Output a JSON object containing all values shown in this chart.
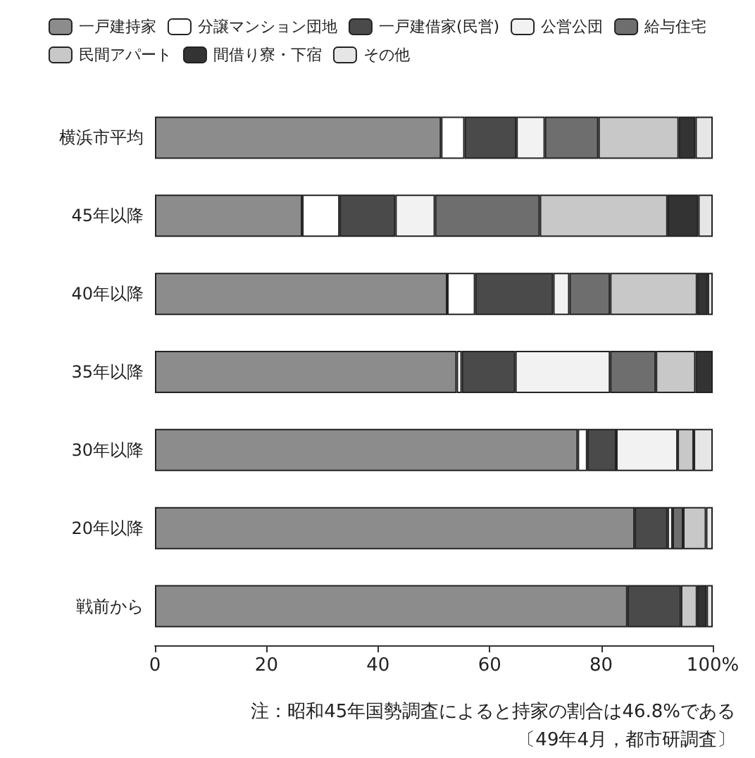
{
  "chart_data": {
    "type": "bar",
    "orientation": "horizontal",
    "stacked": true,
    "categories": [
      "横浜市平均",
      "45年以降",
      "40年以降",
      "35年以降",
      "30年以降",
      "20年以降",
      "戦前から"
    ],
    "series": [
      {
        "name": "一戸建持家",
        "color": "#8c8c8c",
        "values": [
          51.3,
          26.4,
          52.4,
          54.1,
          75.8,
          86.0,
          84.7
        ]
      },
      {
        "name": "分譲マンション団地",
        "color": "#ffffff",
        "values": [
          4.2,
          6.7,
          5.0,
          0.9,
          1.7,
          0,
          0
        ]
      },
      {
        "name": "一戸建借家(民営)",
        "color": "#4a4a4a",
        "values": [
          9.3,
          10.0,
          14.0,
          9.6,
          5.2,
          5.9,
          9.6
        ]
      },
      {
        "name": "公営公団",
        "color": "#f2f2f2",
        "values": [
          5.1,
          7.1,
          2.9,
          17.0,
          11.0,
          0.9,
          0
        ]
      },
      {
        "name": "給与住宅",
        "color": "#6e6e6e",
        "values": [
          9.6,
          18.8,
          7.3,
          8.2,
          0,
          1.9,
          0
        ]
      },
      {
        "name": "民間アパート",
        "color": "#c8c8c8",
        "values": [
          14.4,
          22.9,
          15.6,
          7.1,
          2.9,
          4.1,
          2.9
        ]
      },
      {
        "name": "間借り寮・下宿",
        "color": "#333333",
        "values": [
          3.0,
          5.5,
          1.9,
          3.1,
          0,
          0,
          1.7
        ]
      },
      {
        "name": "その他",
        "color": "#e6e6e6",
        "values": [
          3.1,
          2.6,
          0.9,
          0,
          3.4,
          1.2,
          1.1
        ]
      }
    ],
    "xlim": [
      0,
      100
    ],
    "xticks": [
      0,
      20,
      40,
      60,
      80,
      {
        "value": 100,
        "label": "100%"
      }
    ],
    "grid": false,
    "legend": "top",
    "annotations": [
      "注：昭和45年国勢調査によると持家の割合は46.8%である",
      "〔49年4月，都市研調査〕"
    ]
  }
}
